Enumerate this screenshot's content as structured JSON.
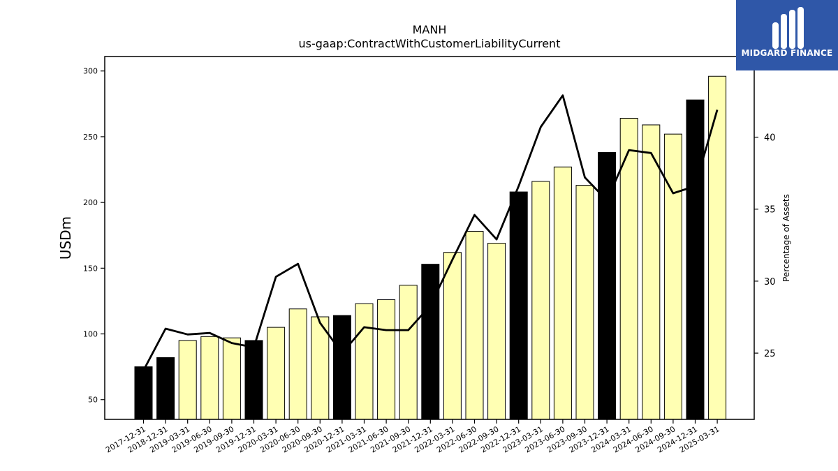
{
  "logo": {
    "text": "MIDGARD FINANCE",
    "background": "#2f57a8"
  },
  "chart_data": {
    "type": "bar",
    "title": "MANH",
    "subtitle": "us-gaap:ContractWithCustomerLiabilityCurrent",
    "ylabel": "USDm",
    "y2label": "Percentage of Assets",
    "ylim": [
      35,
      311
    ],
    "y2lim": [
      20.4,
      45.6
    ],
    "yticks": [
      50,
      100,
      150,
      200,
      250,
      300
    ],
    "y2ticks": [
      25,
      30,
      35,
      40
    ],
    "categories": [
      "2017-12-31",
      "2018-12-31",
      "2019-03-31",
      "2019-06-30",
      "2019-09-30",
      "2019-12-31",
      "2020-03-31",
      "2020-06-30",
      "2020-09-30",
      "2020-12-31",
      "2021-03-31",
      "2021-06-30",
      "2021-09-30",
      "2021-12-31",
      "2022-03-31",
      "2022-06-30",
      "2022-09-30",
      "2022-12-31",
      "2023-03-31",
      "2023-06-30",
      "2023-09-30",
      "2023-12-31",
      "2024-03-31",
      "2024-06-30",
      "2024-09-30",
      "2024-12-31",
      "2025-03-31"
    ],
    "series": [
      {
        "type": "bar",
        "values": [
          75,
          82,
          95,
          98,
          97,
          95,
          105,
          119,
          113,
          114,
          123,
          126,
          137,
          153,
          162,
          178,
          169,
          208,
          216,
          227,
          213,
          238,
          264,
          259,
          252,
          278,
          296
        ]
      },
      {
        "type": "line",
        "axis": "right",
        "values": [
          23.8,
          26.7,
          26.3,
          26.4,
          25.7,
          25.4,
          30.3,
          31.2,
          27.1,
          25.0,
          26.8,
          26.6,
          26.6,
          28.3,
          31.5,
          34.6,
          32.9,
          36.6,
          40.7,
          42.9,
          37.2,
          35.6,
          39.1,
          38.9,
          36.1,
          36.6,
          41.9
        ]
      }
    ],
    "annual_flags": [
      1,
      1,
      0,
      0,
      0,
      1,
      0,
      0,
      0,
      1,
      0,
      0,
      0,
      1,
      0,
      0,
      0,
      1,
      0,
      0,
      0,
      1,
      0,
      0,
      0,
      1,
      0
    ],
    "colors": {
      "annual_bar": "#000000",
      "quarter_bar": "#ffffb3",
      "bar_edge": "#000000",
      "line": "#000000"
    },
    "grid": false,
    "legend": "none"
  }
}
